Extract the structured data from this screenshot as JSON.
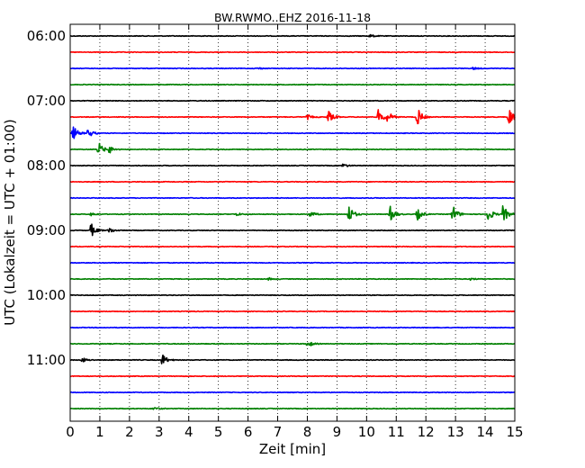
{
  "chart_data": {
    "type": "line",
    "title": "BW.RWMO..EHZ 2016-11-18",
    "xlabel": "Zeit  [min]",
    "ylabel": "UTC (Lokalzeit = UTC + 01:00)",
    "xlim": [
      0,
      15
    ],
    "x_ticks": [
      "0",
      "1",
      "2",
      "3",
      "4",
      "5",
      "6",
      "7",
      "8",
      "9",
      "10",
      "11",
      "12",
      "13",
      "14",
      "15"
    ],
    "y_tick_labels": [
      "06:00",
      "07:00",
      "08:00",
      "09:00",
      "10:00",
      "11:00"
    ],
    "row_interval_min": 15,
    "grid": "dotted vertical lines at each minute",
    "trace_colors": [
      "#000000",
      "#ff0000",
      "#0000ff",
      "#008000"
    ],
    "traces": [
      {
        "start": "06:00",
        "color": "#000000",
        "events": [
          {
            "t": 10.1,
            "amp": 0.2
          }
        ]
      },
      {
        "start": "06:15",
        "color": "#ff0000",
        "events": []
      },
      {
        "start": "06:30",
        "color": "#0000ff",
        "events": [
          {
            "t": 6.3,
            "amp": 0.15
          },
          {
            "t": 13.6,
            "amp": 0.15
          }
        ]
      },
      {
        "start": "06:45",
        "color": "#008000",
        "events": []
      },
      {
        "start": "07:00",
        "color": "#000000",
        "events": []
      },
      {
        "start": "07:15",
        "color": "#ff0000",
        "events": [
          {
            "t": 8.0,
            "amp": 0.3
          },
          {
            "t": 8.7,
            "amp": 0.8
          },
          {
            "t": 10.4,
            "amp": 1.0
          },
          {
            "t": 10.7,
            "amp": 0.7
          },
          {
            "t": 11.7,
            "amp": 1.3
          },
          {
            "t": 14.8,
            "amp": 1.3
          }
        ]
      },
      {
        "start": "07:30",
        "color": "#0000ff",
        "events": [
          {
            "t": 0.1,
            "amp": 0.9
          },
          {
            "t": 0.6,
            "amp": 0.6
          }
        ]
      },
      {
        "start": "07:45",
        "color": "#008000",
        "events": [
          {
            "t": 0.95,
            "amp": 0.9
          },
          {
            "t": 1.3,
            "amp": 0.5
          }
        ]
      },
      {
        "start": "08:00",
        "color": "#000000",
        "events": [
          {
            "t": 9.2,
            "amp": 0.25
          }
        ]
      },
      {
        "start": "08:15",
        "color": "#ff0000",
        "events": []
      },
      {
        "start": "08:30",
        "color": "#0000ff",
        "events": []
      },
      {
        "start": "08:45",
        "color": "#008000",
        "events": [
          {
            "t": 0.7,
            "amp": 0.2
          },
          {
            "t": 5.6,
            "amp": 0.2
          },
          {
            "t": 8.1,
            "amp": 0.4
          },
          {
            "t": 9.4,
            "amp": 1.2
          },
          {
            "t": 10.8,
            "amp": 1.0
          },
          {
            "t": 11.7,
            "amp": 0.8
          },
          {
            "t": 12.9,
            "amp": 1.2
          },
          {
            "t": 14.1,
            "amp": 0.9
          },
          {
            "t": 14.6,
            "amp": 1.2
          }
        ]
      },
      {
        "start": "09:00",
        "color": "#000000",
        "events": [
          {
            "t": 0.7,
            "amp": 0.9
          },
          {
            "t": 1.3,
            "amp": 0.4
          }
        ]
      },
      {
        "start": "09:15",
        "color": "#ff0000",
        "events": []
      },
      {
        "start": "09:30",
        "color": "#0000ff",
        "events": []
      },
      {
        "start": "09:45",
        "color": "#008000",
        "events": [
          {
            "t": 6.7,
            "amp": 0.15
          },
          {
            "t": 13.5,
            "amp": 0.15
          }
        ]
      },
      {
        "start": "10:00",
        "color": "#000000",
        "events": []
      },
      {
        "start": "10:15",
        "color": "#ff0000",
        "events": []
      },
      {
        "start": "10:30",
        "color": "#0000ff",
        "events": []
      },
      {
        "start": "10:45",
        "color": "#008000",
        "events": [
          {
            "t": 8.0,
            "amp": 0.5
          }
        ]
      },
      {
        "start": "11:00",
        "color": "#000000",
        "events": [
          {
            "t": 0.4,
            "amp": 0.3
          },
          {
            "t": 3.1,
            "amp": 0.8
          }
        ]
      },
      {
        "start": "11:15",
        "color": "#ff0000",
        "events": []
      },
      {
        "start": "11:30",
        "color": "#0000ff",
        "events": []
      },
      {
        "start": "11:45",
        "color": "#008000",
        "events": [
          {
            "t": 2.8,
            "amp": 0.2
          }
        ]
      }
    ]
  }
}
